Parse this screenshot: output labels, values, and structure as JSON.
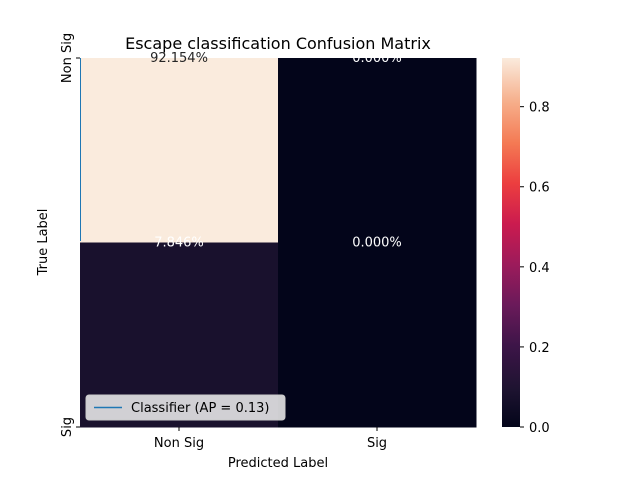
{
  "chart_data": {
    "type": "heatmap",
    "title": "Escape classification Confusion Matrix",
    "xlabel": "Predicted Label",
    "ylabel": "True Label",
    "x_categories": [
      "Non Sig",
      "Sig"
    ],
    "y_categories": [
      "Non Sig",
      "Sig"
    ],
    "values": [
      [
        0.92154,
        0.0
      ],
      [
        0.07846,
        0.0
      ]
    ],
    "cell_labels": [
      [
        "92.154%",
        "0.000%"
      ],
      [
        "7.846%",
        "0.000%"
      ]
    ],
    "colorbar": {
      "min": 0.0,
      "max": 0.92154,
      "ticks": [
        "0.0",
        "0.2",
        "0.4",
        "0.6",
        "0.8"
      ],
      "tick_values": [
        0.0,
        0.2,
        0.4,
        0.6,
        0.8
      ],
      "colormap": "rocket"
    },
    "legend": {
      "entries": [
        {
          "label": "Classifier (AP = 0.13)",
          "color": "#1f77b4"
        }
      ],
      "placement": "lower-left"
    },
    "colors": {
      "line": "#1f77b4"
    }
  }
}
